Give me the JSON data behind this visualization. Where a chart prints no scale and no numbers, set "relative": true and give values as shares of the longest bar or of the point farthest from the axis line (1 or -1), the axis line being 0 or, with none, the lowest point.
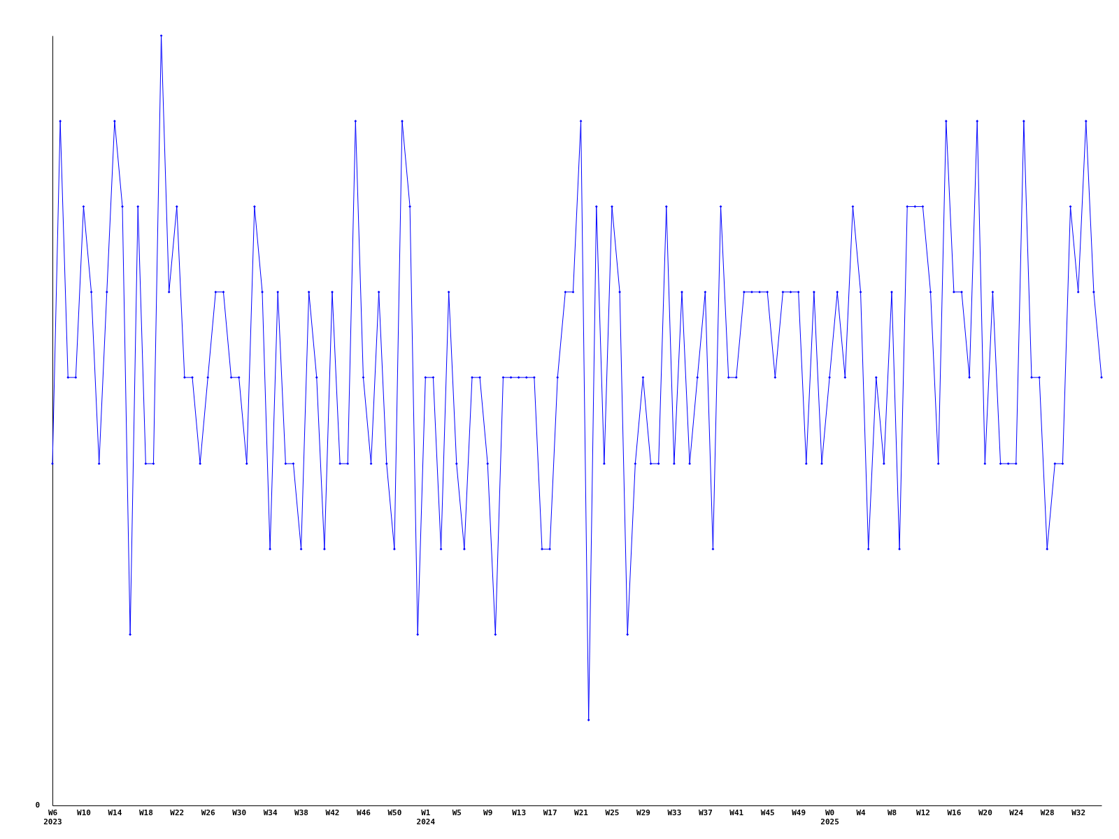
{
  "chart_data": {
    "type": "line",
    "relative": true,
    "marker": "diamond",
    "annotations": [
      "0"
    ],
    "categories": [
      "W6\n2023",
      null,
      null,
      null,
      "W10",
      null,
      null,
      null,
      "W14",
      null,
      null,
      null,
      "W18",
      null,
      null,
      null,
      "W22",
      null,
      null,
      null,
      "W26",
      null,
      null,
      null,
      "W30",
      null,
      null,
      null,
      "W34",
      null,
      null,
      null,
      "W38",
      null,
      null,
      null,
      "W42",
      null,
      null,
      null,
      "W46",
      null,
      null,
      null,
      "W50",
      null,
      null,
      null,
      "W1\n2024",
      null,
      null,
      null,
      "W5",
      null,
      null,
      null,
      "W9",
      null,
      null,
      null,
      "W13",
      null,
      null,
      null,
      "W17",
      null,
      null,
      null,
      "W21",
      null,
      null,
      null,
      "W25",
      null,
      null,
      null,
      "W29",
      null,
      null,
      null,
      "W33",
      null,
      null,
      null,
      "W37",
      null,
      null,
      null,
      "W41",
      null,
      null,
      null,
      "W45",
      null,
      null,
      null,
      "W49",
      null,
      null,
      null,
      "W0\n2025",
      null,
      null,
      null,
      "W4",
      null,
      null,
      null,
      "W8",
      null,
      null,
      null,
      "W12",
      null,
      null,
      null,
      "W16",
      null,
      null,
      null,
      "W20",
      null,
      null,
      null,
      "W24",
      null,
      null,
      null,
      "W28",
      null,
      null,
      null,
      "W32",
      null,
      null,
      null
    ],
    "series": [
      {
        "color": "#0000ff",
        "values": [
          0.444,
          0.889,
          0.556,
          0.556,
          0.778,
          0.667,
          0.444,
          0.667,
          0.889,
          0.778,
          0.222,
          0.778,
          0.444,
          0.444,
          1,
          0.667,
          0.778,
          0.556,
          0.556,
          0.444,
          0.556,
          0.667,
          0.667,
          0.556,
          0.556,
          0.444,
          0.778,
          0.667,
          0.333,
          0.667,
          0.444,
          0.444,
          0.333,
          0.667,
          0.556,
          0.333,
          0.667,
          0.444,
          0.444,
          0.889,
          0.556,
          0.444,
          0.667,
          0.444,
          0.333,
          0.889,
          0.778,
          0.222,
          0.556,
          0.556,
          0.333,
          0.667,
          0.444,
          0.333,
          0.556,
          0.556,
          0.444,
          0.222,
          0.556,
          0.556,
          0.556,
          0.556,
          0.556,
          0.333,
          0.333,
          0.556,
          0.667,
          0.667,
          0.889,
          0.111,
          0.778,
          0.444,
          0.778,
          0.667,
          0.222,
          0.444,
          0.556,
          0.444,
          0.444,
          0.778,
          0.444,
          0.667,
          0.444,
          0.556,
          0.667,
          0.333,
          0.778,
          0.556,
          0.556,
          0.667,
          0.667,
          0.667,
          0.667,
          0.556,
          0.667,
          0.667,
          0.667,
          0.444,
          0.667,
          0.444,
          0.556,
          0.667,
          0.556,
          0.778,
          0.667,
          0.333,
          0.556,
          0.444,
          0.667,
          0.333,
          0.778,
          0.778,
          0.778,
          0.667,
          0.444,
          0.889,
          0.667,
          0.667,
          0.556,
          0.889,
          0.444,
          0.667,
          0.444,
          0.444,
          0.444,
          0.889,
          0.556,
          0.556,
          0.333,
          0.444,
          0.444,
          0.778,
          0.667,
          0.889,
          0.667,
          0.556
        ]
      }
    ]
  }
}
